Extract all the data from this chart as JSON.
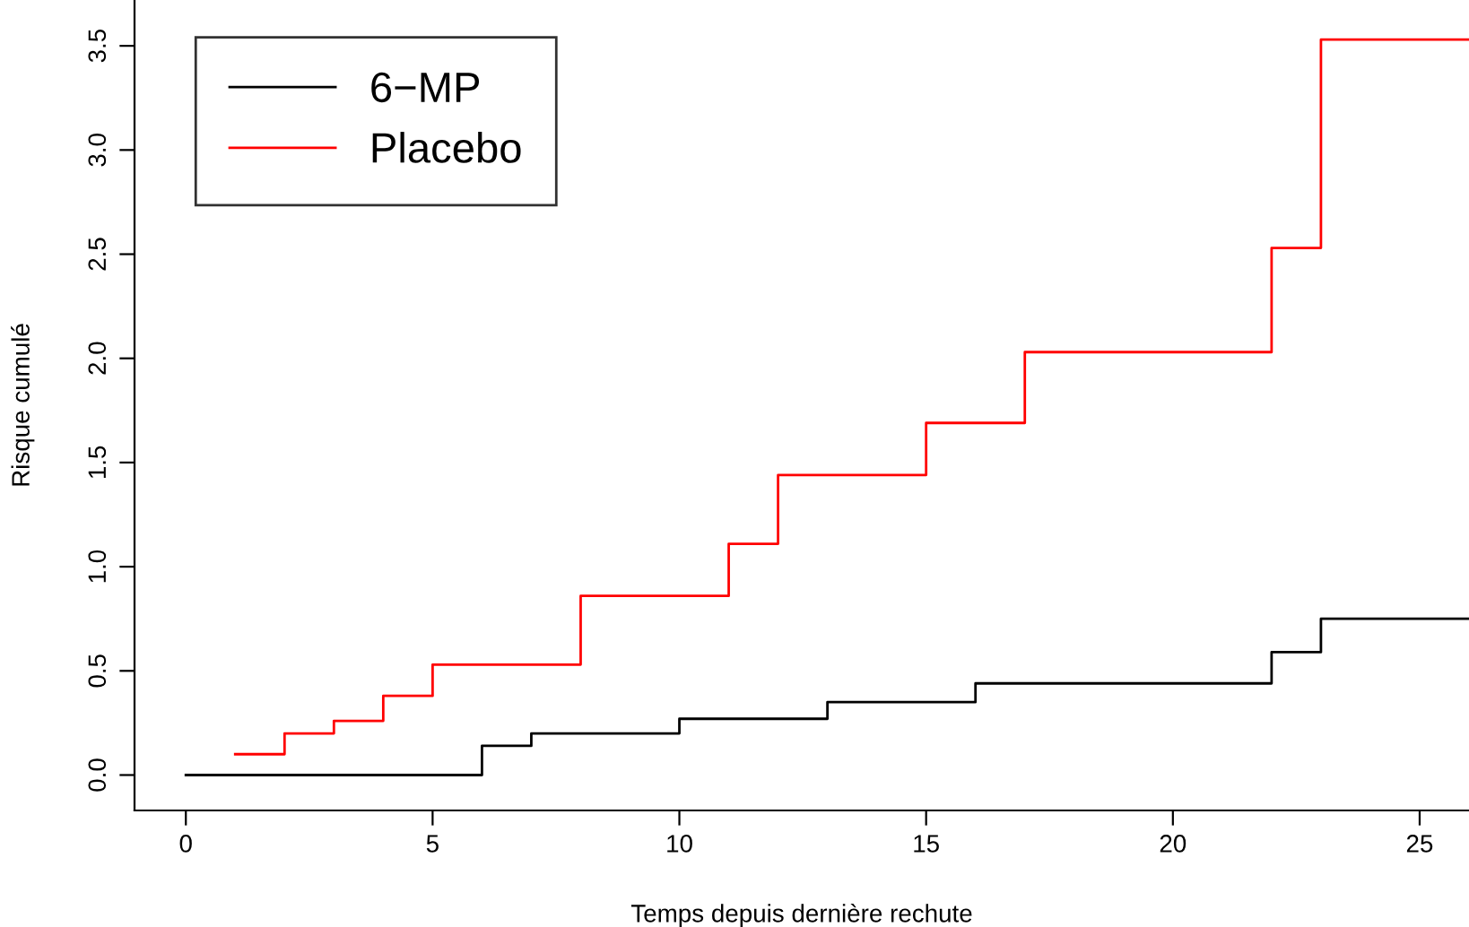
{
  "chart_data": {
    "type": "step",
    "xlabel": "Temps depuis dernière rechute",
    "ylabel": "Risque cumulé",
    "series": [
      {
        "name": "6−MP",
        "color": "#000000",
        "x": [
          0,
          6,
          7,
          10,
          13,
          16,
          22,
          23,
          26
        ],
        "values": [
          0,
          0.14,
          0.2,
          0.27,
          0.35,
          0.44,
          0.59,
          0.75,
          0.75
        ]
      },
      {
        "name": "Placebo",
        "color": "#ff0000",
        "x": [
          1,
          2,
          3,
          4,
          5,
          8,
          11,
          12,
          15,
          17,
          22,
          23,
          26
        ],
        "values": [
          0.1,
          0.2,
          0.26,
          0.38,
          0.53,
          0.86,
          1.11,
          1.44,
          1.69,
          2.03,
          2.53,
          3.53,
          3.53
        ]
      }
    ],
    "xlim": [
      -1.04,
      26
    ],
    "ylim": [
      -0.17,
      3.72
    ],
    "xticks": [
      0,
      5,
      10,
      15,
      20,
      25
    ],
    "yticks": [
      {
        "value": 0,
        "label": "0.0"
      },
      {
        "value": 0.5,
        "label": "0.5"
      },
      {
        "value": 1,
        "label": "1.0"
      },
      {
        "value": 1.5,
        "label": "1.5"
      },
      {
        "value": 2,
        "label": "2.0"
      },
      {
        "value": 2.5,
        "label": "2.5"
      },
      {
        "value": 3,
        "label": "3.0"
      },
      {
        "value": 3.5,
        "label": "3.5"
      }
    ],
    "grid": false,
    "legend": "top left",
    "line_style": "solid",
    "marker": "none"
  }
}
